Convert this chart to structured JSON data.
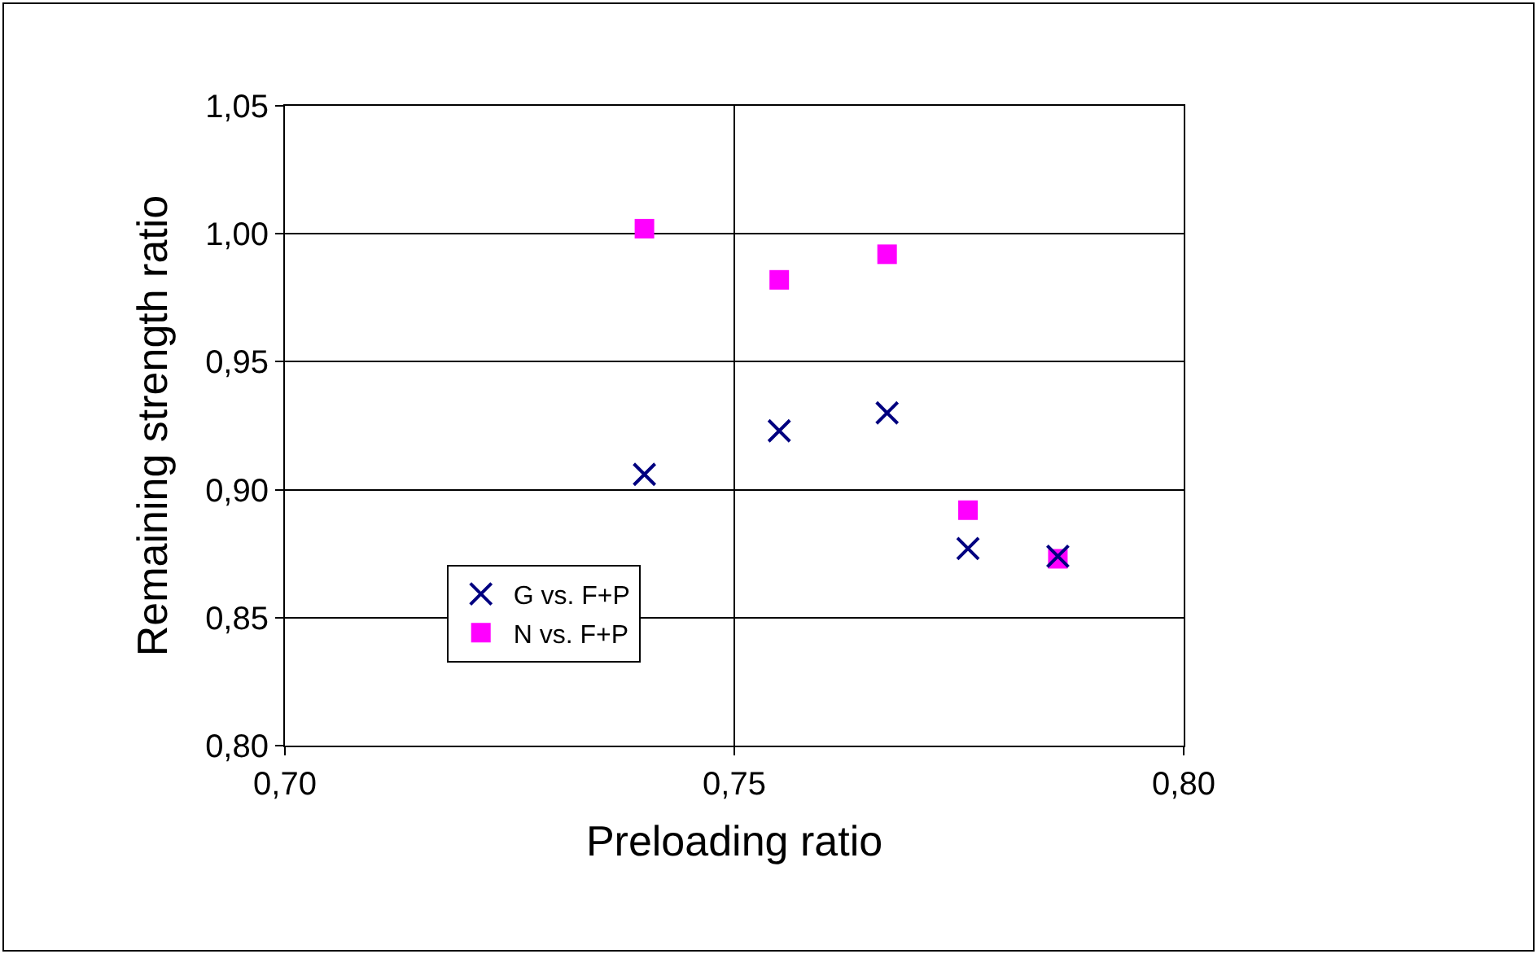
{
  "chart_data": {
    "type": "scatter",
    "xlabel": "Preloading ratio",
    "ylabel": "Remaining strength ratio",
    "xlim": [
      0.7,
      0.8
    ],
    "xticks": [
      {
        "value": 0.7,
        "label": "0,70"
      },
      {
        "value": 0.75,
        "label": "0,75"
      },
      {
        "value": 0.8,
        "label": "0,80"
      }
    ],
    "ylim": [
      0.8,
      1.05
    ],
    "yticks": [
      {
        "value": 0.8,
        "label": "0,80"
      },
      {
        "value": 0.85,
        "label": "0,85"
      },
      {
        "value": 0.9,
        "label": "0,90"
      },
      {
        "value": 0.95,
        "label": "0,95"
      },
      {
        "value": 1.0,
        "label": "1,00"
      },
      {
        "value": 1.05,
        "label": "1,05"
      }
    ],
    "grid": true,
    "legend": "bottom left",
    "x": [
      0.74,
      0.755,
      0.767,
      0.776,
      0.786
    ],
    "series": [
      {
        "name": "G vs. F+P",
        "color": "#000080",
        "marker": "cross",
        "values": [
          0.906,
          0.923,
          0.93,
          0.877,
          0.874
        ]
      },
      {
        "name": "N vs. F+P",
        "color": "#ff00ff",
        "marker": "square",
        "values": [
          1.002,
          0.982,
          0.992,
          0.892,
          0.873
        ]
      }
    ]
  }
}
